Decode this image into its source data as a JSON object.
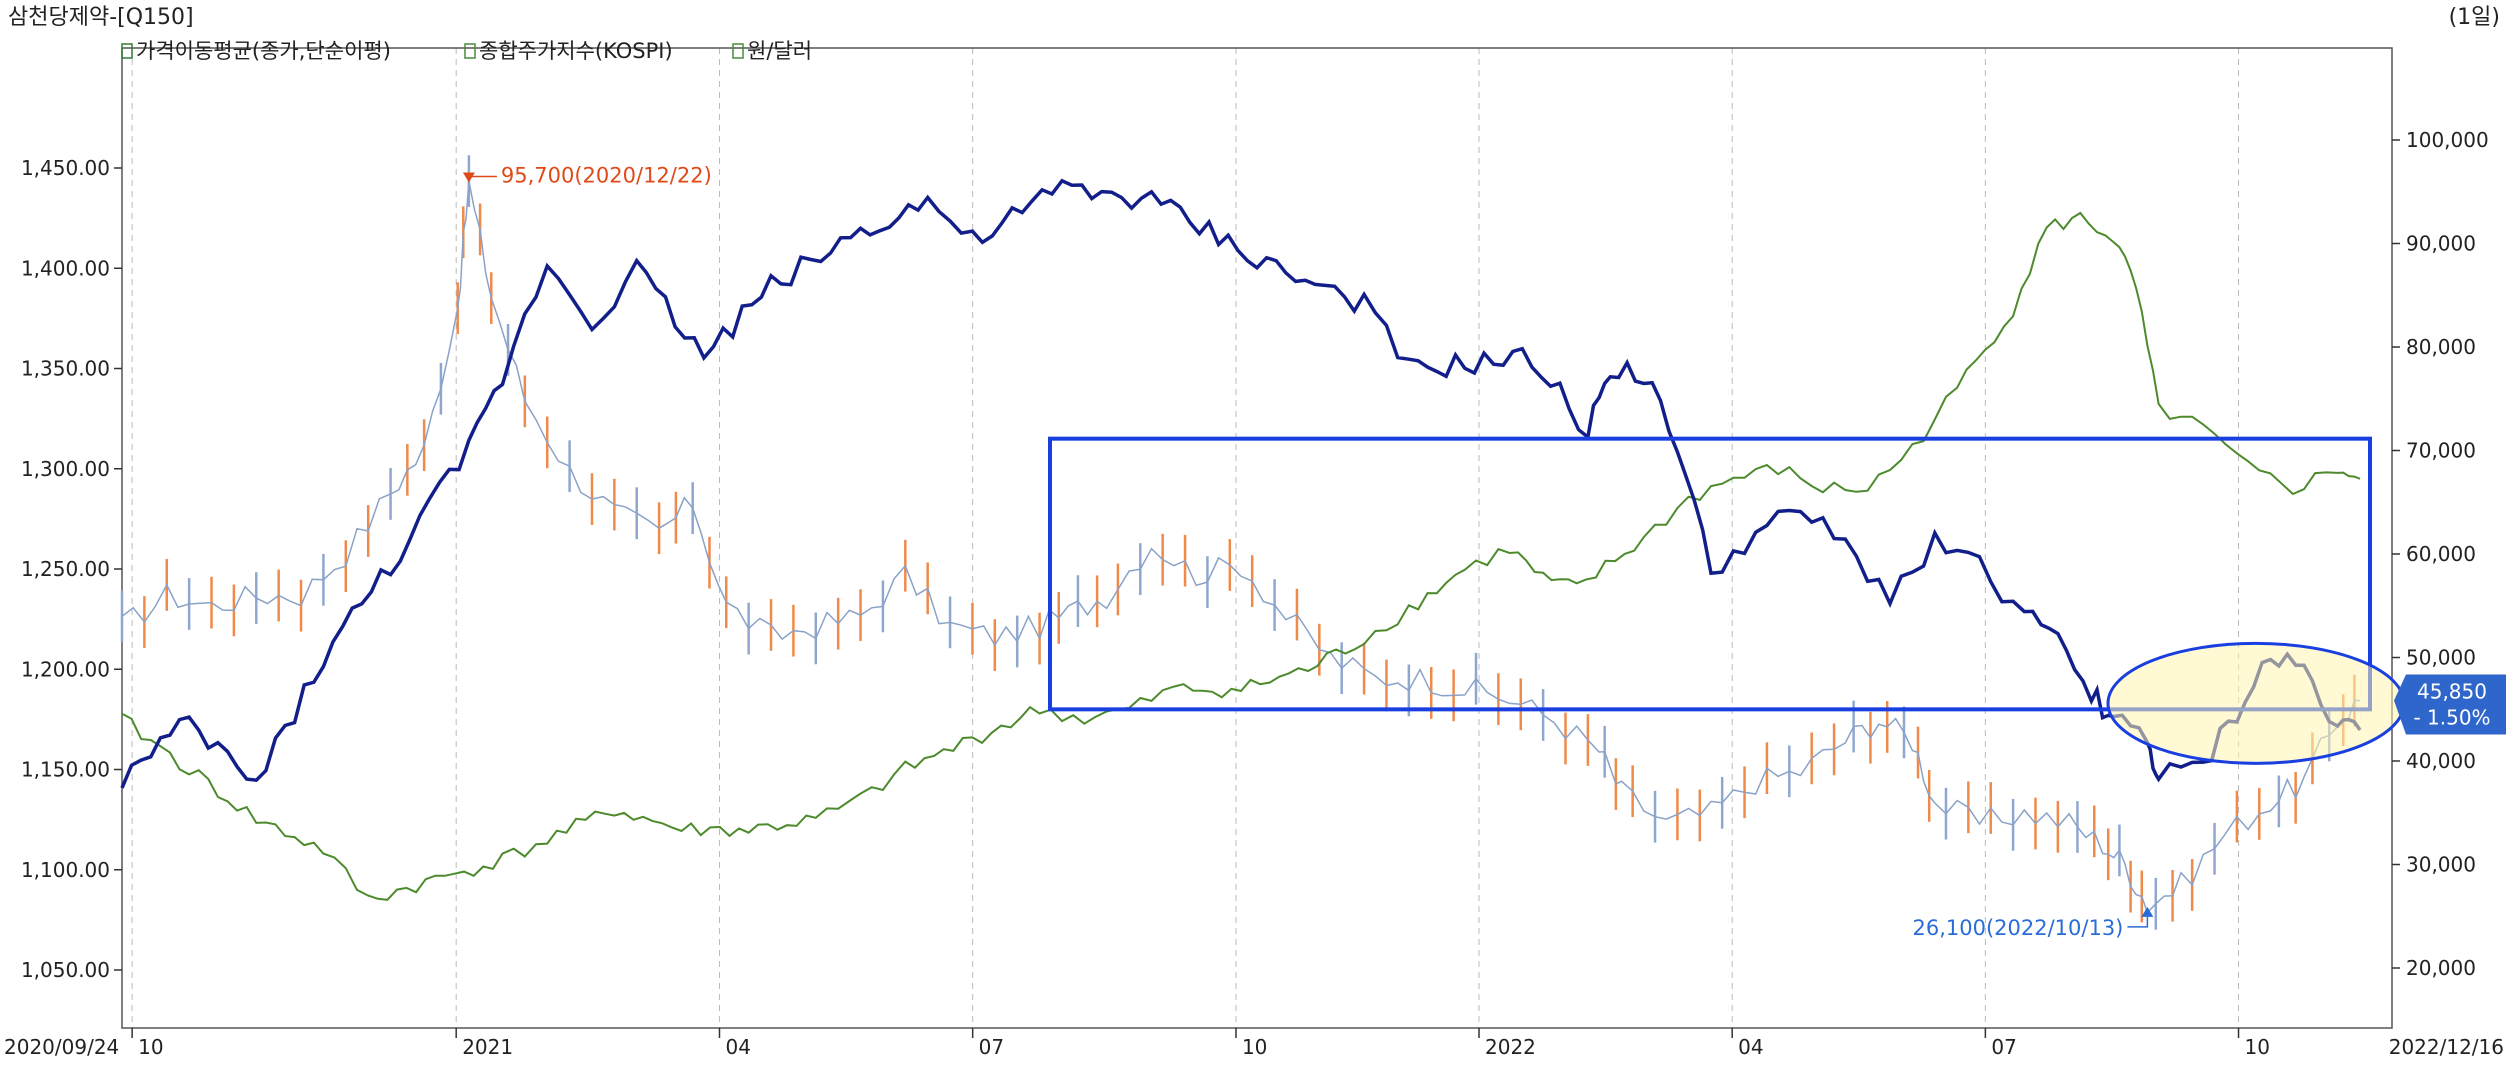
{
  "header": {
    "title": "삼천당제약-[Q150]",
    "period": "(1일)"
  },
  "legend": [
    {
      "label": "가격이동평균(종가,단순이평)",
      "color": "#2e7d32"
    },
    {
      "label": "종합주가지수(KOSPI)",
      "color": "#4a8a3a"
    },
    {
      "label": "원/달러",
      "color": "#4a8a3a"
    }
  ],
  "chart_data": {
    "type": "line",
    "x_axis": {
      "start_label": "2020/09/24",
      "end_label": "2022/12/16",
      "ticks": [
        "10",
        "2021",
        "04",
        "07",
        "10",
        "2022",
        "04",
        "07",
        "10"
      ]
    },
    "left_axis": {
      "ticks": [
        "1,450.00",
        "1,400.00",
        "1,350.00",
        "1,300.00",
        "1,250.00",
        "1,200.00",
        "1,150.00",
        "1,100.00",
        "1,050.00"
      ],
      "values": [
        1450,
        1400,
        1350,
        1300,
        1250,
        1200,
        1150,
        1100,
        1050
      ]
    },
    "right_axis": {
      "ticks": [
        "100,000",
        "90,000",
        "80,000",
        "70,000",
        "60,000",
        "50,000",
        "40,000",
        "30,000",
        "20,000"
      ],
      "values": [
        100000,
        90000,
        80000,
        70000,
        60000,
        50000,
        40000,
        30000,
        20000
      ]
    },
    "price_label": {
      "value": "45,850",
      "change": "- 1.50%",
      "value_num": 45850
    },
    "annotations": [
      {
        "text": "95,700(2020/12/22)",
        "kind": "max",
        "value": 95700
      },
      {
        "text": "26,100(2022/10/13)",
        "kind": "min",
        "value": 26100
      }
    ],
    "series": [
      {
        "name": "종합주가지수(KOSPI)",
        "color": "#121f8a",
        "axis": "left",
        "points": [
          [
            0,
            2300
          ],
          [
            0.03,
            2390
          ],
          [
            0.06,
            2290
          ],
          [
            0.09,
            2500
          ],
          [
            0.12,
            2650
          ],
          [
            0.155,
            2840
          ],
          [
            0.17,
            2960
          ],
          [
            0.19,
            3150
          ],
          [
            0.21,
            3050
          ],
          [
            0.23,
            3140
          ],
          [
            0.26,
            2995
          ],
          [
            0.29,
            3110
          ],
          [
            0.33,
            3200
          ],
          [
            0.36,
            3250
          ],
          [
            0.38,
            3180
          ],
          [
            0.42,
            3270
          ],
          [
            0.46,
            3250
          ],
          [
            0.49,
            3190
          ],
          [
            0.52,
            3130
          ],
          [
            0.555,
            3080
          ],
          [
            0.575,
            2970
          ],
          [
            0.6,
            2980
          ],
          [
            0.63,
            2990
          ],
          [
            0.655,
            2870
          ],
          [
            0.665,
            2980
          ],
          [
            0.68,
            2960
          ],
          [
            0.695,
            2850
          ],
          [
            0.71,
            2640
          ],
          [
            0.73,
            2700
          ],
          [
            0.75,
            2740
          ],
          [
            0.77,
            2680
          ],
          [
            0.79,
            2600
          ],
          [
            0.81,
            2690
          ],
          [
            0.83,
            2650
          ],
          [
            0.85,
            2570
          ],
          [
            0.865,
            2520
          ],
          [
            0.88,
            2440
          ],
          [
            0.89,
            2400
          ],
          [
            0.905,
            2360
          ],
          [
            0.91,
            2300
          ],
          [
            0.93,
            2320
          ],
          [
            0.945,
            2410
          ],
          [
            0.96,
            2500
          ],
          [
            0.975,
            2480
          ],
          [
            0.99,
            2390
          ],
          [
            1.0,
            2380
          ]
        ]
      },
      {
        "name": "원/달러",
        "color": "#4c8a2c",
        "axis": "left",
        "points": [
          [
            0,
            1175
          ],
          [
            0.03,
            1150
          ],
          [
            0.06,
            1125
          ],
          [
            0.09,
            1110
          ],
          [
            0.11,
            1085
          ],
          [
            0.14,
            1095
          ],
          [
            0.17,
            1105
          ],
          [
            0.19,
            1115
          ],
          [
            0.22,
            1130
          ],
          [
            0.25,
            1120
          ],
          [
            0.28,
            1120
          ],
          [
            0.31,
            1125
          ],
          [
            0.33,
            1135
          ],
          [
            0.35,
            1150
          ],
          [
            0.38,
            1165
          ],
          [
            0.41,
            1180
          ],
          [
            0.43,
            1175
          ],
          [
            0.45,
            1180
          ],
          [
            0.47,
            1190
          ],
          [
            0.5,
            1190
          ],
          [
            0.53,
            1200
          ],
          [
            0.555,
            1215
          ],
          [
            0.575,
            1230
          ],
          [
            0.6,
            1250
          ],
          [
            0.62,
            1260
          ],
          [
            0.635,
            1245
          ],
          [
            0.65,
            1240
          ],
          [
            0.68,
            1265
          ],
          [
            0.7,
            1285
          ],
          [
            0.72,
            1295
          ],
          [
            0.74,
            1300
          ],
          [
            0.76,
            1290
          ],
          [
            0.78,
            1290
          ],
          [
            0.8,
            1310
          ],
          [
            0.82,
            1340
          ],
          [
            0.845,
            1380
          ],
          [
            0.86,
            1420
          ],
          [
            0.875,
            1425
          ],
          [
            0.89,
            1415
          ],
          [
            0.9,
            1390
          ],
          [
            0.91,
            1330
          ],
          [
            0.93,
            1320
          ],
          [
            0.95,
            1300
          ],
          [
            0.97,
            1290
          ],
          [
            0.99,
            1300
          ],
          [
            1.0,
            1295
          ]
        ]
      },
      {
        "name": "가격이동평균(종가,단순이평)",
        "color": "#8aa2c8",
        "axis": "right",
        "points": [
          [
            0,
            53000
          ],
          [
            0.02,
            56000
          ],
          [
            0.04,
            55000
          ],
          [
            0.06,
            56000
          ],
          [
            0.08,
            56000
          ],
          [
            0.1,
            60000
          ],
          [
            0.12,
            66000
          ],
          [
            0.135,
            70000
          ],
          [
            0.15,
            84000
          ],
          [
            0.155,
            95700
          ],
          [
            0.165,
            85000
          ],
          [
            0.18,
            75000
          ],
          [
            0.2,
            68000
          ],
          [
            0.22,
            64000
          ],
          [
            0.24,
            62000
          ],
          [
            0.255,
            65000
          ],
          [
            0.27,
            55000
          ],
          [
            0.29,
            52000
          ],
          [
            0.31,
            53000
          ],
          [
            0.33,
            54000
          ],
          [
            0.35,
            58000
          ],
          [
            0.37,
            53000
          ],
          [
            0.39,
            52000
          ],
          [
            0.41,
            53000
          ],
          [
            0.44,
            56000
          ],
          [
            0.46,
            61000
          ],
          [
            0.48,
            58000
          ],
          [
            0.5,
            59000
          ],
          [
            0.52,
            54000
          ],
          [
            0.54,
            50000
          ],
          [
            0.56,
            48000
          ],
          [
            0.58,
            48000
          ],
          [
            0.6,
            47000
          ],
          [
            0.62,
            46000
          ],
          [
            0.64,
            44000
          ],
          [
            0.66,
            41000
          ],
          [
            0.67,
            37000
          ],
          [
            0.69,
            34000
          ],
          [
            0.71,
            35000
          ],
          [
            0.73,
            38000
          ],
          [
            0.75,
            39000
          ],
          [
            0.77,
            42000
          ],
          [
            0.785,
            44000
          ],
          [
            0.8,
            42000
          ],
          [
            0.81,
            36000
          ],
          [
            0.83,
            34000
          ],
          [
            0.85,
            35000
          ],
          [
            0.87,
            34000
          ],
          [
            0.885,
            32000
          ],
          [
            0.895,
            30000
          ],
          [
            0.905,
            26100
          ],
          [
            0.92,
            28000
          ],
          [
            0.94,
            33000
          ],
          [
            0.96,
            36000
          ],
          [
            0.975,
            38000
          ],
          [
            0.99,
            44000
          ],
          [
            1.0,
            45850
          ]
        ]
      }
    ],
    "highlight_box": {
      "from_x": 0.6,
      "to_x": 1.0,
      "upper_value": 1315,
      "lower_value": 1180
    },
    "highlight_ellipse": {
      "center_x": 0.955,
      "value": 1183
    }
  }
}
